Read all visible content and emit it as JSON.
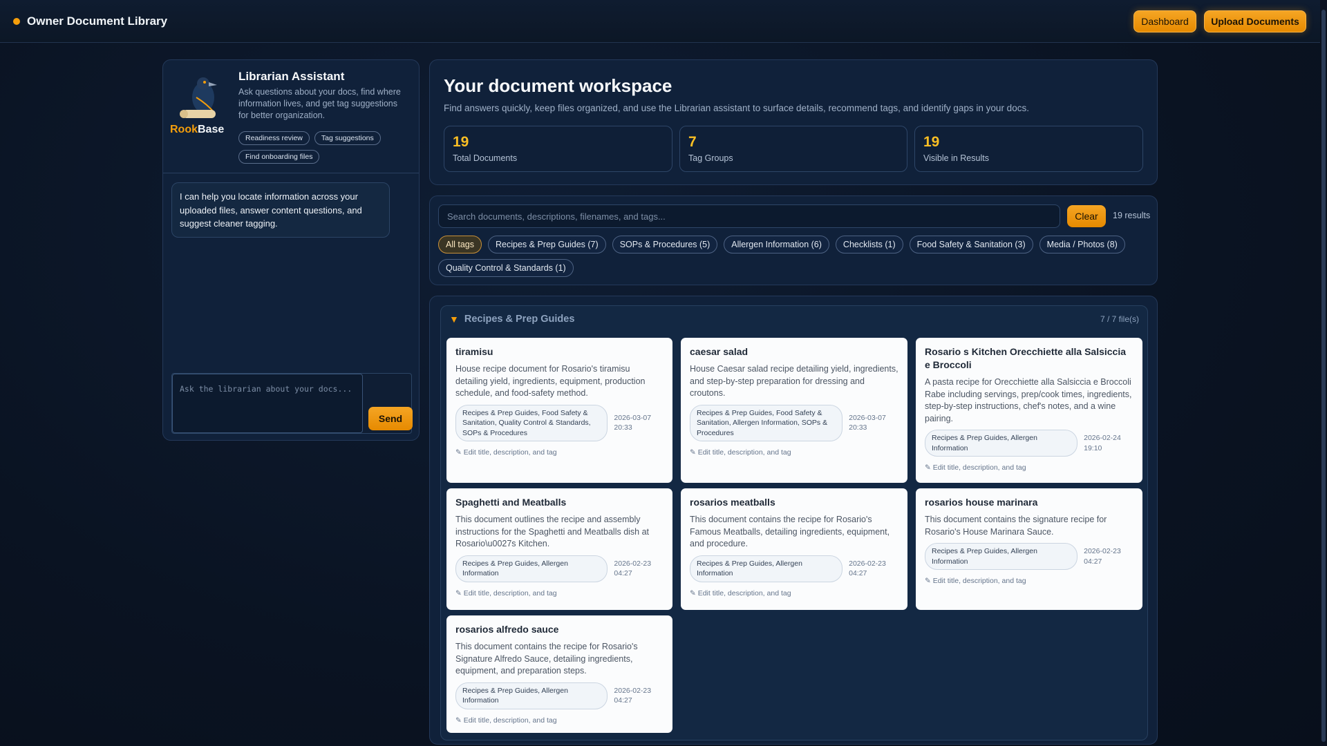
{
  "header": {
    "title": "Owner Document Library",
    "dashboard_label": "Dashboard",
    "upload_label": "Upload Documents"
  },
  "assistant": {
    "logo_text_a": "Rook",
    "logo_text_b": "Base",
    "title": "Librarian Assistant",
    "description": "Ask questions about your docs, find where information lives, and get tag suggestions for better organization.",
    "quick_actions": [
      "Readiness review",
      "Tag suggestions",
      "Find onboarding files"
    ],
    "message": "I can help you locate information across your uploaded files, answer content questions, and suggest cleaner tagging.",
    "input_placeholder": "Ask the librarian about your docs...",
    "send_label": "Send"
  },
  "workspace": {
    "title": "Your document workspace",
    "subtitle": "Find answers quickly, keep files organized, and use the Librarian assistant to surface details, recommend tags, and identify gaps in your docs.",
    "stats": [
      {
        "value": "19",
        "label": "Total Documents"
      },
      {
        "value": "7",
        "label": "Tag Groups"
      },
      {
        "value": "19",
        "label": "Visible in Results"
      }
    ]
  },
  "search": {
    "placeholder": "Search documents, descriptions, filenames, and tags...",
    "clear_label": "Clear",
    "results": "19 results",
    "tags": [
      "All tags",
      "Recipes & Prep Guides (7)",
      "SOPs & Procedures (5)",
      "Allergen Information (6)",
      "Checklists (1)",
      "Food Safety & Sanitation (3)",
      "Media / Photos (8)",
      "Quality Control & Standards (1)"
    ],
    "active_tag": "All tags"
  },
  "group": {
    "title": "Recipes & Prep Guides",
    "count": "7 / 7 file(s)",
    "edit_label": "✎ Edit title, description, and tag",
    "documents": [
      {
        "title": "tiramisu",
        "description": "House recipe document for Rosario's tiramisu detailing yield, ingredients, equipment, production schedule, and food-safety method.",
        "tags": "Recipes & Prep Guides, Food Safety & Sanitation, Quality Control & Standards, SOPs & Procedures",
        "date": "2026-03-07 20:33"
      },
      {
        "title": "caesar salad",
        "description": "House Caesar salad recipe detailing yield, ingredients, and step-by-step preparation for dressing and croutons.",
        "tags": "Recipes & Prep Guides, Food Safety & Sanitation, Allergen Information, SOPs & Procedures",
        "date": "2026-03-07 20:33"
      },
      {
        "title": "Rosario s Kitchen Orecchiette alla Salsiccia e Broccoli",
        "description": "A pasta recipe for Orecchiette alla Salsiccia e Broccoli Rabe including servings, prep/cook times, ingredients, step-by-step instructions, chef's notes, and a wine pairing.",
        "tags": "Recipes & Prep Guides, Allergen Information",
        "date": "2026-02-24 19:10"
      },
      {
        "title": "Spaghetti and Meatballs",
        "description": "This document outlines the recipe and assembly instructions for the Spaghetti and Meatballs dish at Rosario\\u0027s Kitchen.",
        "tags": "Recipes & Prep Guides, Allergen Information",
        "date": "2026-02-23 04:27"
      },
      {
        "title": "rosarios meatballs",
        "description": "This document contains the recipe for Rosario's Famous Meatballs, detailing ingredients, equipment, and procedure.",
        "tags": "Recipes & Prep Guides, Allergen Information",
        "date": "2026-02-23 04:27"
      },
      {
        "title": "rosarios house marinara",
        "description": "This document contains the signature recipe for Rosario's House Marinara Sauce.",
        "tags": "Recipes & Prep Guides, Allergen Information",
        "date": "2026-02-23 04:27"
      },
      {
        "title": "rosarios alfredo sauce",
        "description": "This document contains the recipe for Rosario's Signature Alfredo Sauce, detailing ingredients, equipment, and preparation steps.",
        "tags": "Recipes & Prep Guides, Allergen Information",
        "date": "2026-02-23 04:27"
      }
    ]
  },
  "colors": {
    "accent": "#f59e0b",
    "background": "#0a1322",
    "panel": "#10213a",
    "card": "#fbfcfd"
  }
}
